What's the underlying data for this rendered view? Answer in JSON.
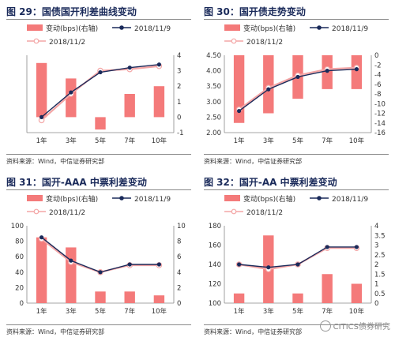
{
  "panels": [
    {
      "title": "图 29：国债国开利差曲线变动",
      "source": "资料来源：Wind，中信证券研究部",
      "chart_data": {
        "type": "bar",
        "categories": [
          "1年",
          "3年",
          "5年",
          "7年",
          "10年"
        ],
        "legend": {
          "bar": "变动(bps)(右轴)",
          "line1": "2018/11/9",
          "line2": "2018/11/2"
        },
        "series": [
          {
            "name": "变动(bps)(右轴)",
            "axis": "right",
            "kind": "bar",
            "values": [
              3.5,
              2.5,
              -0.8,
              1.5,
              2
            ]
          },
          {
            "name": "2018/11/9",
            "axis": "left",
            "kind": "line",
            "values": [
              0,
              1.6,
              2.9,
              3.2,
              3.4
            ]
          },
          {
            "name": "2018/11/2",
            "axis": "left",
            "kind": "line",
            "values": [
              -0.2,
              1.5,
              3.0,
              3.1,
              3.3
            ]
          }
        ],
        "ylim": [
          -1,
          4
        ],
        "yticks": [
          -1,
          0,
          1,
          2,
          3,
          4
        ],
        "y2lim": [
          -1,
          4
        ],
        "y2ticks": [
          -1,
          0,
          1,
          2,
          3,
          4
        ],
        "show_left_axis": false
      }
    },
    {
      "title": "图 30：国开债走势变动",
      "source": "资料来源：Wind，中信证券研究部",
      "chart_data": {
        "type": "bar",
        "categories": [
          "1年",
          "3年",
          "5年",
          "7年",
          "10年"
        ],
        "legend": {
          "bar": "变动(bps)(右轴)",
          "line1": "2018/11/9",
          "line2": "2018/11/2"
        },
        "series": [
          {
            "name": "变动(bps)(右轴)",
            "axis": "right",
            "kind": "bar",
            "values": [
              -14,
              -12,
              -9,
              -7,
              -7
            ]
          },
          {
            "name": "2018/11/9",
            "axis": "left",
            "kind": "line",
            "values": [
              2.7,
              3.4,
              3.8,
              4.0,
              4.05
            ]
          },
          {
            "name": "2018/11/2",
            "axis": "left",
            "kind": "line",
            "values": [
              2.75,
              3.45,
              3.85,
              4.05,
              4.1
            ]
          }
        ],
        "ylim": [
          2.0,
          4.5
        ],
        "yticks": [
          2.0,
          2.5,
          3.0,
          3.5,
          4.0,
          4.5
        ],
        "ydecimals": 2,
        "y2lim": [
          -16,
          0
        ],
        "y2ticks": [
          -16,
          -14,
          -12,
          -10,
          -8,
          -6,
          -4,
          -2,
          0
        ],
        "show_left_axis": true
      }
    },
    {
      "title": "图 31：国开-AAA 中票利差变动",
      "source": "资料来源：Wind，中信证券研究部",
      "chart_data": {
        "type": "bar",
        "categories": [
          "1年",
          "3年",
          "5年",
          "7年",
          "10年"
        ],
        "legend": {
          "bar": "变动(bps)(右轴)",
          "line1": "2018/11/9",
          "line2": "2018/11/2"
        },
        "series": [
          {
            "name": "变动(bps)(右轴)",
            "axis": "right",
            "kind": "bar",
            "values": [
              8.5,
              7.2,
              1.5,
              1.5,
              1.0
            ]
          },
          {
            "name": "2018/11/9",
            "axis": "left",
            "kind": "line",
            "values": [
              85,
              55,
              40,
              50,
              50
            ]
          },
          {
            "name": "2018/11/2",
            "axis": "left",
            "kind": "line",
            "values": [
              83,
              53,
              40,
              49,
              49
            ]
          }
        ],
        "ylim": [
          0,
          100
        ],
        "yticks": [
          0,
          20,
          40,
          60,
          80,
          100
        ],
        "y2lim": [
          0,
          10
        ],
        "y2ticks": [
          0,
          2,
          4,
          6,
          8,
          10
        ],
        "show_left_axis": true
      }
    },
    {
      "title": "图 32：国开-AA 中票利差变动",
      "source": "资料来源：Wind，中信证券研究部",
      "chart_data": {
        "type": "bar",
        "categories": [
          "1年",
          "3年",
          "5年",
          "7年",
          "10年"
        ],
        "legend": {
          "bar": "变动(bps)(右轴)",
          "line1": "2018/11/9",
          "line2": "2018/11/2"
        },
        "series": [
          {
            "name": "变动(bps)(右轴)",
            "axis": "right",
            "kind": "bar",
            "values": [
              0.5,
              3.5,
              0.5,
              1.5,
              1.0
            ]
          },
          {
            "name": "2018/11/9",
            "axis": "left",
            "kind": "line",
            "values": [
              140,
              137,
              140,
              158,
              158
            ]
          },
          {
            "name": "2018/11/2",
            "axis": "left",
            "kind": "line",
            "values": [
              140,
              135,
              140,
              157,
              157
            ]
          }
        ],
        "ylim": [
          100,
          180
        ],
        "yticks": [
          100,
          120,
          140,
          160,
          180
        ],
        "y2lim": [
          0,
          4
        ],
        "y2ticks": [
          0,
          0.5,
          1,
          1.5,
          2,
          2.5,
          3,
          3.5,
          4
        ],
        "show_left_axis": true
      }
    }
  ],
  "watermark": "CITICS债券研究",
  "colors": {
    "bar": "#f47a7a",
    "line1": "#1a2a5a",
    "line2": "#f4a6a6",
    "axis": "#888888"
  }
}
